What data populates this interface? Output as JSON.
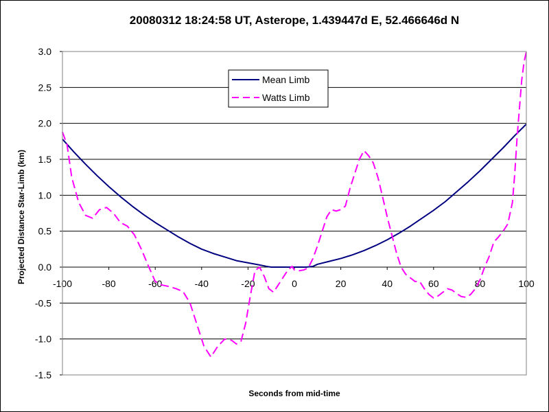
{
  "chart_data": {
    "type": "line",
    "title": "20080312 18:24:58 UT, Asterope, 1.439447d E, 52.466646d N",
    "xlabel": "Seconds from mid-time",
    "ylabel": "Projected Distance Star-Limb (km)",
    "xlim": [
      -100,
      100
    ],
    "ylim": [
      -1.5,
      3.0
    ],
    "x_ticks": [
      "-100",
      "-80",
      "-60",
      "-40",
      "-20",
      "0",
      "20",
      "40",
      "60",
      "80",
      "100"
    ],
    "y_ticks": [
      "3.0",
      "2.5",
      "2.0",
      "1.5",
      "1.0",
      "0.5",
      "0.0",
      "-0.5",
      "-1.0",
      "-1.5"
    ],
    "grid": "horizontal major gridlines",
    "legend": "upper-left inside plot",
    "series": [
      {
        "name": "Mean Limb",
        "color": "#000080",
        "style": "solid",
        "x": [
          -100,
          -95,
          -90,
          -85,
          -80,
          -75,
          -70,
          -65,
          -60,
          -55,
          -50,
          -45,
          -40,
          -35,
          -30,
          -25,
          -20,
          -15,
          -12,
          -10,
          -5,
          0,
          5,
          8,
          10,
          15,
          20,
          25,
          30,
          35,
          40,
          45,
          50,
          55,
          60,
          65,
          70,
          75,
          80,
          85,
          90,
          95,
          100
        ],
        "y": [
          1.78,
          1.6,
          1.43,
          1.27,
          1.12,
          0.98,
          0.85,
          0.73,
          0.62,
          0.52,
          0.42,
          0.33,
          0.25,
          0.19,
          0.14,
          0.09,
          0.06,
          0.03,
          0.01,
          0.0,
          0.0,
          0.0,
          0.0,
          0.01,
          0.04,
          0.08,
          0.12,
          0.17,
          0.23,
          0.3,
          0.38,
          0.47,
          0.57,
          0.68,
          0.79,
          0.91,
          1.05,
          1.19,
          1.34,
          1.5,
          1.66,
          1.83,
          1.99
        ]
      },
      {
        "name": "Watts Limb",
        "color": "#FF00FF",
        "style": "dashed",
        "x": [
          -100,
          -98,
          -96,
          -93,
          -90,
          -87,
          -84,
          -81,
          -78,
          -75,
          -72,
          -69,
          -66,
          -63,
          -60,
          -57,
          -54,
          -51,
          -48,
          -45,
          -42,
          -39,
          -36,
          -33,
          -30,
          -27,
          -25,
          -23,
          -21,
          -19,
          -17,
          -15,
          -13,
          -11,
          -9,
          -7,
          -5,
          -3,
          -1,
          0,
          2,
          4,
          6,
          8,
          10,
          12,
          14,
          16,
          18,
          20,
          22,
          24,
          26,
          28,
          30,
          32,
          34,
          36,
          38,
          40,
          42,
          44,
          46,
          48,
          50,
          52,
          54,
          56,
          58,
          60,
          62,
          64,
          66,
          68,
          70,
          72,
          74,
          76,
          78,
          80,
          82,
          84,
          86,
          88,
          90,
          92,
          94,
          95,
          96,
          97,
          98,
          99,
          100
        ],
        "y": [
          1.88,
          1.7,
          1.25,
          0.9,
          0.72,
          0.68,
          0.8,
          0.83,
          0.75,
          0.62,
          0.57,
          0.45,
          0.25,
          0.02,
          -0.2,
          -0.25,
          -0.27,
          -0.3,
          -0.34,
          -0.5,
          -0.8,
          -1.1,
          -1.25,
          -1.1,
          -1.0,
          -1.02,
          -1.07,
          -1.03,
          -0.78,
          -0.4,
          -0.05,
          0.0,
          -0.13,
          -0.3,
          -0.35,
          -0.25,
          -0.15,
          -0.05,
          0.01,
          -0.04,
          -0.05,
          -0.04,
          -0.01,
          0.12,
          0.3,
          0.5,
          0.7,
          0.8,
          0.78,
          0.8,
          0.85,
          1.1,
          1.3,
          1.5,
          1.62,
          1.55,
          1.45,
          1.25,
          0.98,
          0.7,
          0.45,
          0.2,
          0.0,
          -0.1,
          -0.15,
          -0.2,
          -0.2,
          -0.3,
          -0.38,
          -0.43,
          -0.4,
          -0.35,
          -0.3,
          -0.32,
          -0.37,
          -0.41,
          -0.42,
          -0.38,
          -0.3,
          -0.18,
          0.0,
          0.15,
          0.35,
          0.42,
          0.5,
          0.6,
          0.9,
          1.3,
          1.8,
          2.2,
          2.6,
          2.85,
          3.0
        ]
      }
    ]
  }
}
